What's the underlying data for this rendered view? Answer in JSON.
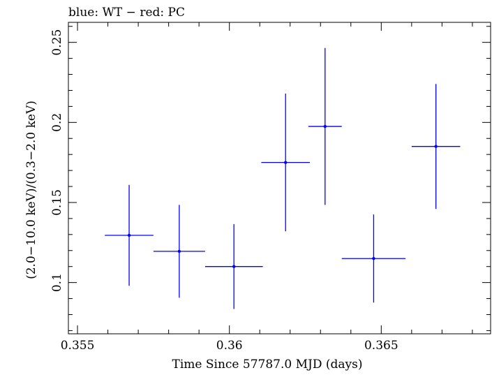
{
  "chart_data": {
    "type": "scatter",
    "title": "blue: WT − red: PC",
    "xlabel": "Time Since 57787.0 MJD (days)",
    "ylabel": "(2.0−10.0 keV)/(0.3−2.0 keV)",
    "xlim": [
      0.3547,
      0.3686
    ],
    "ylim": [
      0.068,
      0.2625
    ],
    "x_ticks": [
      0.355,
      0.36,
      0.365
    ],
    "x_tick_labels": [
      "0.355",
      "0.36",
      "0.365"
    ],
    "y_ticks": [
      0.1,
      0.15,
      0.2,
      0.25
    ],
    "y_tick_labels": [
      "0.1",
      "0.15",
      "0.2",
      "0.25"
    ],
    "grid": false,
    "series": [
      {
        "color": "#0000ff",
        "points": [
          {
            "x": 0.3567,
            "y": 0.1295,
            "xerr_low": 0.0008,
            "xerr_high": 0.0008,
            "yerr_low": 0.0315,
            "yerr_high": 0.0315
          },
          {
            "x": 0.35835,
            "y": 0.1195,
            "xerr_low": 0.00085,
            "xerr_high": 0.00085,
            "yerr_low": 0.029,
            "yerr_high": 0.029
          },
          {
            "x": 0.36015,
            "y": 0.11,
            "xerr_low": 0.00095,
            "xerr_high": 0.00095,
            "yerr_low": 0.0265,
            "yerr_high": 0.0265
          },
          {
            "x": 0.36185,
            "y": 0.175,
            "xerr_low": 0.0008,
            "xerr_high": 0.0008,
            "yerr_low": 0.043,
            "yerr_high": 0.043
          },
          {
            "x": 0.36315,
            "y": 0.1975,
            "xerr_low": 0.00055,
            "xerr_high": 0.00055,
            "yerr_low": 0.049,
            "yerr_high": 0.049
          },
          {
            "x": 0.36475,
            "y": 0.115,
            "xerr_low": 0.00105,
            "xerr_high": 0.00105,
            "yerr_low": 0.0275,
            "yerr_high": 0.0275
          },
          {
            "x": 0.3668,
            "y": 0.185,
            "xerr_low": 0.0008,
            "xerr_high": 0.0008,
            "yerr_low": 0.039,
            "yerr_high": 0.039
          }
        ]
      }
    ]
  }
}
